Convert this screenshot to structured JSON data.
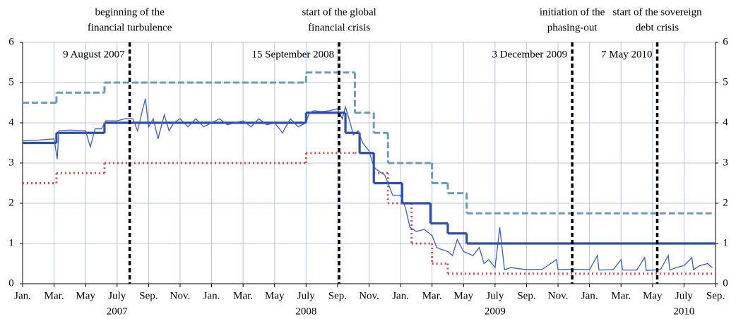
{
  "chart_data": {
    "type": "line",
    "xlim": [
      0,
      44
    ],
    "ylim": [
      0,
      6
    ],
    "yticks": [
      0,
      1,
      2,
      3,
      4,
      5,
      6
    ],
    "y2lim": [
      0,
      6
    ],
    "y2ticks": [
      0,
      1,
      2,
      3,
      4,
      5,
      6
    ],
    "grid": true,
    "xticks": [
      {
        "value": 0,
        "label": "Jan."
      },
      {
        "value": 2,
        "label": "Mar."
      },
      {
        "value": 4,
        "label": "May"
      },
      {
        "value": 6,
        "label": "July"
      },
      {
        "value": 8,
        "label": "Sep."
      },
      {
        "value": 10,
        "label": "Nov."
      },
      {
        "value": 12,
        "label": "Jan."
      },
      {
        "value": 14,
        "label": "Mar."
      },
      {
        "value": 16,
        "label": "May"
      },
      {
        "value": 18,
        "label": "July"
      },
      {
        "value": 20,
        "label": "Sep."
      },
      {
        "value": 22,
        "label": "Nov."
      },
      {
        "value": 24,
        "label": "Jan."
      },
      {
        "value": 26,
        "label": "Mar."
      },
      {
        "value": 28,
        "label": "May"
      },
      {
        "value": 30,
        "label": "July"
      },
      {
        "value": 32,
        "label": "Sep."
      },
      {
        "value": 34,
        "label": "Nov."
      },
      {
        "value": 36,
        "label": "Jan."
      },
      {
        "value": 38,
        "label": "Mar."
      },
      {
        "value": 40,
        "label": "May"
      },
      {
        "value": 42,
        "label": "July"
      },
      {
        "value": 44,
        "label": "Sep."
      }
    ],
    "year_labels": [
      {
        "value": 6,
        "label": "2007"
      },
      {
        "value": 18,
        "label": "2008"
      },
      {
        "value": 30,
        "label": "2009"
      },
      {
        "value": 42,
        "label": "2010"
      }
    ],
    "events": [
      {
        "x": 6.8,
        "date": "9 August 2007",
        "text": [
          "beginning of the",
          "financial turbulence"
        ]
      },
      {
        "x": 20.1,
        "date": "15 September 2008",
        "text": [
          "start of the global",
          "financial crisis"
        ]
      },
      {
        "x": 34.9,
        "date": "3 December 2009",
        "text": [
          "initiation of the",
          "phasing-out"
        ]
      },
      {
        "x": 40.3,
        "date": "7 May 2010",
        "text": [
          "start of the sovereign",
          "debt crisis"
        ]
      }
    ],
    "steps": [
      {
        "color": "#6d9cb3",
        "style": "dashed",
        "x": [
          0,
          2.15,
          5.2,
          18,
          21.1,
          22.3,
          23.2,
          26,
          27,
          28.2
        ],
        "values": [
          4.5,
          4.75,
          5.0,
          5.25,
          4.25,
          3.75,
          3.0,
          2.5,
          2.25,
          1.75
        ]
      },
      {
        "color": "#c0504d",
        "style": "dotted",
        "x": [
          0,
          2.15,
          5.2,
          18,
          21.1,
          22.3,
          23.2,
          24.7,
          26,
          27
        ],
        "values": [
          2.5,
          2.75,
          3.0,
          3.25,
          3.25,
          2.75,
          2.0,
          1.0,
          0.5,
          0.25
        ]
      },
      {
        "color": "#2e4bb0",
        "style": "solid",
        "x": [
          0,
          2.15,
          5.2,
          18,
          20.5,
          21.4,
          22.3,
          24.1,
          25.9,
          27,
          28.2
        ],
        "values": [
          3.5,
          3.75,
          4.0,
          4.25,
          3.75,
          3.25,
          2.5,
          2.0,
          1.5,
          1.25,
          1.0
        ]
      }
    ],
    "series": [
      {
        "color": "#3b5cc4",
        "x": [
          0,
          1,
          2,
          2.2,
          2.3,
          3,
          4,
          4.3,
          4.6,
          5,
          5.3,
          6,
          6.5,
          7,
          7.3,
          7.6,
          7.8,
          8,
          8.3,
          8.6,
          9,
          9.3,
          9.6,
          10,
          10.5,
          11,
          11.5,
          12,
          12.5,
          13,
          13.5,
          14,
          14.5,
          15,
          15.5,
          16,
          16.5,
          17,
          17.5,
          18,
          18.2,
          18.5,
          19,
          19.5,
          20,
          20.3,
          20.5,
          20.8,
          21,
          21.3,
          21.6,
          22,
          22.3,
          22.6,
          23,
          23.5,
          24,
          24.3,
          24.6,
          25,
          25.5,
          26,
          26.3,
          26.6,
          27,
          27.3,
          27.6,
          28,
          28.3,
          28.6,
          29,
          29.3,
          29.6,
          30,
          30.3,
          30.6,
          31,
          32,
          33,
          33.9,
          34,
          35,
          36,
          36.5,
          36.6,
          37.5,
          38,
          38.1,
          39,
          39.5,
          39.6,
          40.5,
          41,
          41.1,
          41.5,
          42,
          42.5,
          42.6,
          43,
          43.5,
          43.8
        ],
        "values": [
          3.55,
          3.57,
          3.6,
          3.1,
          3.8,
          3.82,
          3.8,
          3.4,
          3.85,
          3.85,
          4.05,
          4.05,
          4.1,
          4.1,
          3.8,
          4.3,
          4.6,
          3.9,
          4.1,
          3.6,
          4.2,
          3.8,
          4.0,
          4.1,
          3.9,
          4.1,
          3.9,
          4.0,
          4.1,
          3.95,
          4.0,
          4.05,
          3.9,
          4.1,
          3.95,
          4.0,
          3.75,
          4.1,
          3.9,
          4.0,
          4.25,
          4.3,
          4.28,
          4.3,
          4.35,
          4.1,
          4.4,
          4.0,
          3.7,
          3.8,
          3.5,
          3.3,
          2.9,
          2.8,
          2.7,
          2.2,
          2.2,
          1.9,
          1.4,
          1.3,
          1.35,
          1.2,
          0.9,
          0.85,
          0.8,
          0.7,
          1.1,
          0.8,
          0.75,
          0.7,
          0.9,
          0.5,
          0.6,
          0.4,
          1.4,
          0.35,
          0.4,
          0.35,
          0.36,
          0.6,
          0.35,
          0.36,
          0.35,
          0.7,
          0.34,
          0.35,
          0.6,
          0.34,
          0.34,
          0.65,
          0.33,
          0.35,
          0.7,
          0.34,
          0.4,
          0.45,
          0.65,
          0.35,
          0.45,
          0.5,
          0.4
        ]
      }
    ]
  }
}
